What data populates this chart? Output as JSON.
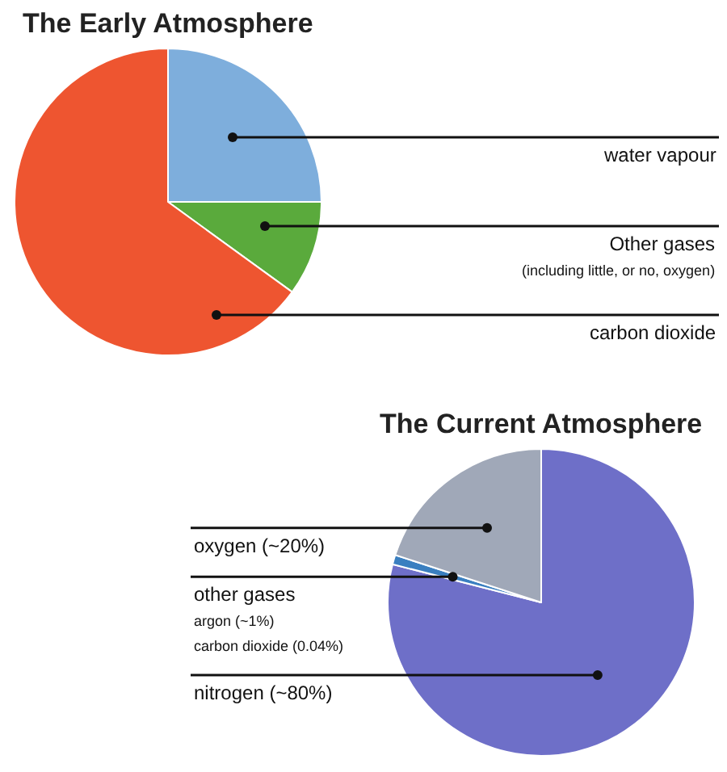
{
  "chart_data": [
    {
      "type": "pie",
      "title": "The Early Atmosphere",
      "categories": [
        "water vapour",
        "Other gases\n(including little, or no, oxygen)",
        "carbon dioxide"
      ],
      "values": [
        25,
        10,
        65
      ],
      "colors": [
        "#7eaedc",
        "#5aaa3c",
        "#ee5530"
      ]
    },
    {
      "type": "pie",
      "title": "The Current Atmosphere",
      "categories": [
        "nitrogen (~80%)",
        "other gases\nargon (~1%)\ncarbon dioxide (0.04%)",
        "oxygen (~20%)"
      ],
      "values": [
        79,
        1,
        20
      ],
      "colors": [
        "#6e6fc8",
        "#3a7fc0",
        "#a0a8b8"
      ]
    }
  ]
}
